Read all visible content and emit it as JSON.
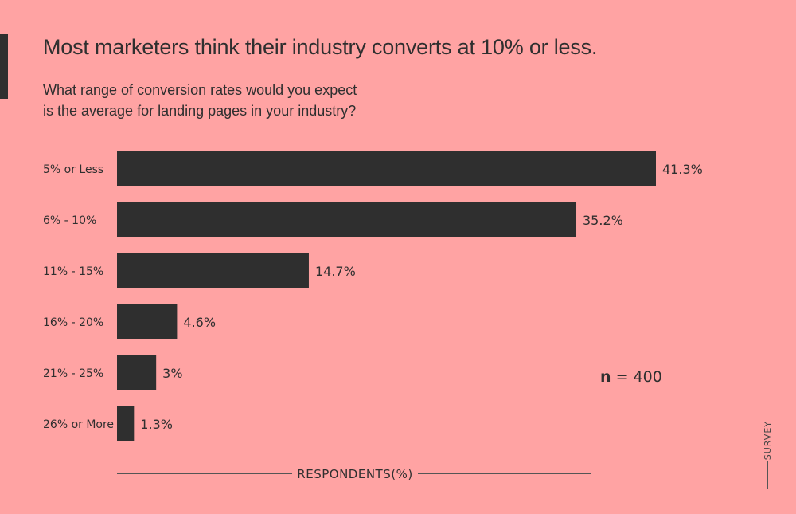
{
  "title": "Most marketers think their industry converts at 10% or less.",
  "subtitle": {
    "line1": "What range of conversion rates would you expect",
    "line2": "is the average for landing pages in your industry?"
  },
  "note": {
    "bold": "n",
    "rest": " = 400"
  },
  "axis_caption": "RESPONDENTS(%)",
  "side_tag": "SURVEY",
  "colors": {
    "background": "#FFA3A3",
    "bar": "#2F2F2F",
    "text": "#2F2F2F"
  },
  "chart_data": {
    "type": "bar",
    "orientation": "horizontal",
    "categories": [
      "5% or Less",
      "6% - 10%",
      "11% - 15%",
      "16% - 20%",
      "21% - 25%",
      "26% or More"
    ],
    "values": [
      41.3,
      35.2,
      14.7,
      4.6,
      3,
      1.3
    ],
    "value_labels": [
      "41.3%",
      "35.2%",
      "14.7%",
      "4.6%",
      "3%",
      "1.3%"
    ],
    "xlabel": "RESPONDENTS(%)",
    "grid": false
  }
}
